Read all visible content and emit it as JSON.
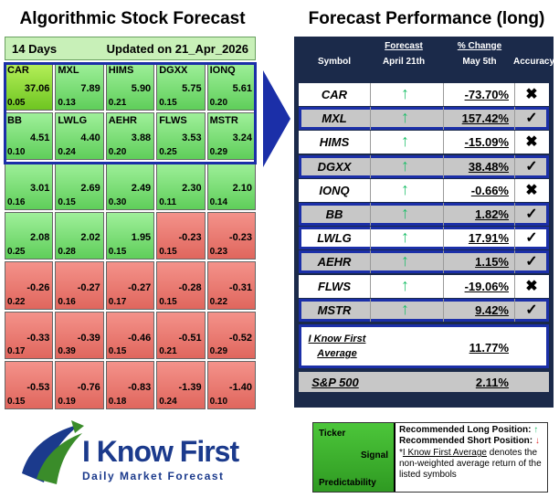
{
  "left_title": "Algorithmic Stock Forecast",
  "right_title": "Forecast Performance (long)",
  "grid_header": {
    "days": "14 Days",
    "updated": "Updated on 21_Apr_2026"
  },
  "grid": [
    {
      "ticker": "CAR",
      "value": "37.06",
      "pred": "0.05",
      "color": "top"
    },
    {
      "ticker": "MXL",
      "value": "7.89",
      "pred": "0.13",
      "color": "green"
    },
    {
      "ticker": "HIMS",
      "value": "5.90",
      "pred": "0.21",
      "color": "green"
    },
    {
      "ticker": "DGXX",
      "value": "5.75",
      "pred": "0.15",
      "color": "green"
    },
    {
      "ticker": "IONQ",
      "value": "5.61",
      "pred": "0.20",
      "color": "green"
    },
    {
      "ticker": "BB",
      "value": "4.51",
      "pred": "0.10",
      "color": "green"
    },
    {
      "ticker": "LWLG",
      "value": "4.40",
      "pred": "0.24",
      "color": "green"
    },
    {
      "ticker": "AEHR",
      "value": "3.88",
      "pred": "0.20",
      "color": "green"
    },
    {
      "ticker": "FLWS",
      "value": "3.53",
      "pred": "0.25",
      "color": "green"
    },
    {
      "ticker": "MSTR",
      "value": "3.24",
      "pred": "0.29",
      "color": "green"
    },
    {
      "ticker": "",
      "value": "3.01",
      "pred": "0.16",
      "color": "green"
    },
    {
      "ticker": "",
      "value": "2.69",
      "pred": "0.15",
      "color": "green"
    },
    {
      "ticker": "",
      "value": "2.49",
      "pred": "0.30",
      "color": "green"
    },
    {
      "ticker": "",
      "value": "2.30",
      "pred": "0.11",
      "color": "green"
    },
    {
      "ticker": "",
      "value": "2.10",
      "pred": "0.14",
      "color": "green"
    },
    {
      "ticker": "",
      "value": "2.08",
      "pred": "0.25",
      "color": "green"
    },
    {
      "ticker": "",
      "value": "2.02",
      "pred": "0.28",
      "color": "green"
    },
    {
      "ticker": "",
      "value": "1.95",
      "pred": "0.15",
      "color": "green"
    },
    {
      "ticker": "",
      "value": "-0.23",
      "pred": "0.15",
      "color": "red"
    },
    {
      "ticker": "",
      "value": "-0.23",
      "pred": "0.23",
      "color": "red"
    },
    {
      "ticker": "",
      "value": "-0.26",
      "pred": "0.22",
      "color": "red"
    },
    {
      "ticker": "",
      "value": "-0.27",
      "pred": "0.16",
      "color": "red"
    },
    {
      "ticker": "",
      "value": "-0.27",
      "pred": "0.17",
      "color": "red"
    },
    {
      "ticker": "",
      "value": "-0.28",
      "pred": "0.15",
      "color": "red"
    },
    {
      "ticker": "",
      "value": "-0.31",
      "pred": "0.22",
      "color": "red"
    },
    {
      "ticker": "",
      "value": "-0.33",
      "pred": "0.17",
      "color": "red"
    },
    {
      "ticker": "",
      "value": "-0.39",
      "pred": "0.39",
      "color": "red"
    },
    {
      "ticker": "",
      "value": "-0.46",
      "pred": "0.15",
      "color": "red"
    },
    {
      "ticker": "",
      "value": "-0.51",
      "pred": "0.21",
      "color": "red"
    },
    {
      "ticker": "",
      "value": "-0.52",
      "pred": "0.29",
      "color": "red"
    },
    {
      "ticker": "",
      "value": "-0.53",
      "pred": "0.15",
      "color": "red"
    },
    {
      "ticker": "",
      "value": "-0.76",
      "pred": "0.19",
      "color": "red"
    },
    {
      "ticker": "",
      "value": "-0.83",
      "pred": "0.18",
      "color": "red"
    },
    {
      "ticker": "",
      "value": "-1.39",
      "pred": "0.24",
      "color": "red"
    },
    {
      "ticker": "",
      "value": "-1.40",
      "pred": "0.10",
      "color": "red"
    }
  ],
  "table_header": {
    "symbol": "Symbol",
    "forecast": "Forecast",
    "forecast_date": "April 21th",
    "change": "% Change",
    "change_date": "May 5th",
    "accuracy": "Accuracy"
  },
  "rows": [
    {
      "symbol": "CAR",
      "arrow": "↑",
      "change": "-73.70%",
      "accuracy": "✖",
      "shade": "white",
      "boxed": false
    },
    {
      "symbol": "MXL",
      "arrow": "↑",
      "change": "157.42%",
      "accuracy": "✓",
      "shade": "gray",
      "boxed": true
    },
    {
      "symbol": "HIMS",
      "arrow": "↑",
      "change": "-15.09%",
      "accuracy": "✖",
      "shade": "white",
      "boxed": false
    },
    {
      "symbol": "DGXX",
      "arrow": "↑",
      "change": "38.48%",
      "accuracy": "✓",
      "shade": "gray",
      "boxed": true
    },
    {
      "symbol": "IONQ",
      "arrow": "↑",
      "change": "-0.66%",
      "accuracy": "✖",
      "shade": "white",
      "boxed": false
    },
    {
      "symbol": "BB",
      "arrow": "↑",
      "change": "1.82%",
      "accuracy": "✓",
      "shade": "gray",
      "boxed": true
    },
    {
      "symbol": "LWLG",
      "arrow": "↑",
      "change": "17.91%",
      "accuracy": "✓",
      "shade": "white",
      "boxed": true
    },
    {
      "symbol": "AEHR",
      "arrow": "↑",
      "change": "1.15%",
      "accuracy": "✓",
      "shade": "gray",
      "boxed": true
    },
    {
      "symbol": "FLWS",
      "arrow": "↑",
      "change": "-19.06%",
      "accuracy": "✖",
      "shade": "white",
      "boxed": false
    },
    {
      "symbol": "MSTR",
      "arrow": "↑",
      "change": "9.42%",
      "accuracy": "✓",
      "shade": "gray",
      "boxed": true
    }
  ],
  "average": {
    "label": "I Know First Average",
    "change": "11.77%"
  },
  "sp500": {
    "label": "S&P 500",
    "change": "2.11%"
  },
  "logo": {
    "brand": "I Know First",
    "tagline": "Daily Market Forecast"
  },
  "legend": {
    "ticker": "Ticker",
    "signal": "Signal",
    "predictability": "Predictability",
    "long": "Recommended Long Position:",
    "short": "Recommended Short Position:",
    "note_link": "I Know First Average",
    "note_prefix": "*",
    "note_rest": " denotes the non-weighted average return of the listed symbols"
  },
  "colors": {
    "accent_blue": "#1b2fa8",
    "green_cell": "#5fce5a",
    "red_cell": "#e0665d",
    "arrow_green": "#1fbf6a",
    "arrow_red": "#e03030"
  }
}
